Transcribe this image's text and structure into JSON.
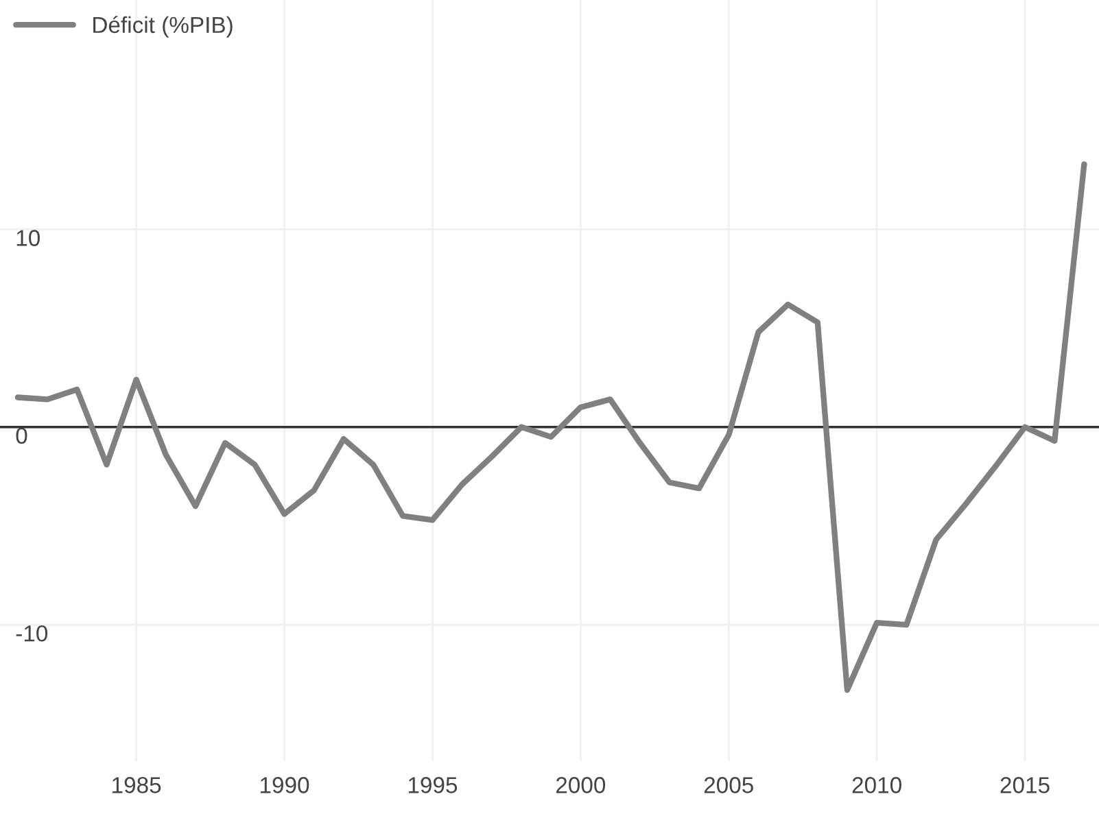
{
  "chart_data": {
    "type": "line",
    "x": [
      1981,
      1982,
      1983,
      1984,
      1985,
      1986,
      1987,
      1988,
      1989,
      1990,
      1991,
      1992,
      1993,
      1994,
      1995,
      1996,
      1997,
      1998,
      1999,
      2000,
      2001,
      2002,
      2003,
      2004,
      2005,
      2006,
      2007,
      2008,
      2009,
      2010,
      2011,
      2012,
      2013,
      2014,
      2015,
      2016,
      2017
    ],
    "series": [
      {
        "name": "Déficit (%PIB)",
        "color": "#808080",
        "values": [
          1.5,
          1.4,
          1.9,
          -1.9,
          2.4,
          -1.4,
          -4.0,
          -0.8,
          -1.9,
          -4.4,
          -3.2,
          -0.6,
          -1.9,
          -4.5,
          -4.7,
          -2.9,
          -1.5,
          0.0,
          -0.5,
          1.0,
          1.4,
          -0.8,
          -2.8,
          -3.1,
          -0.4,
          4.8,
          6.2,
          5.3,
          -13.3,
          -9.9,
          -10.0,
          -5.7,
          -3.9,
          -2.0,
          0.0,
          -0.7,
          13.3
        ]
      }
    ],
    "xlim": [
      1980.4,
      2017.5
    ],
    "xticks": [
      1985,
      1990,
      1995,
      2000,
      2005,
      2010,
      2015
    ],
    "ylim": [
      -16.9,
      21.6
    ],
    "yticks": [
      10,
      0,
      {
        "value": -10,
        "label": "-10"
      }
    ],
    "ref_lines": [
      {
        "axis": "y",
        "value": 0,
        "color": "#333333"
      }
    ],
    "grid": true,
    "legend": "top left",
    "marker": "none",
    "line_style": "solid"
  }
}
